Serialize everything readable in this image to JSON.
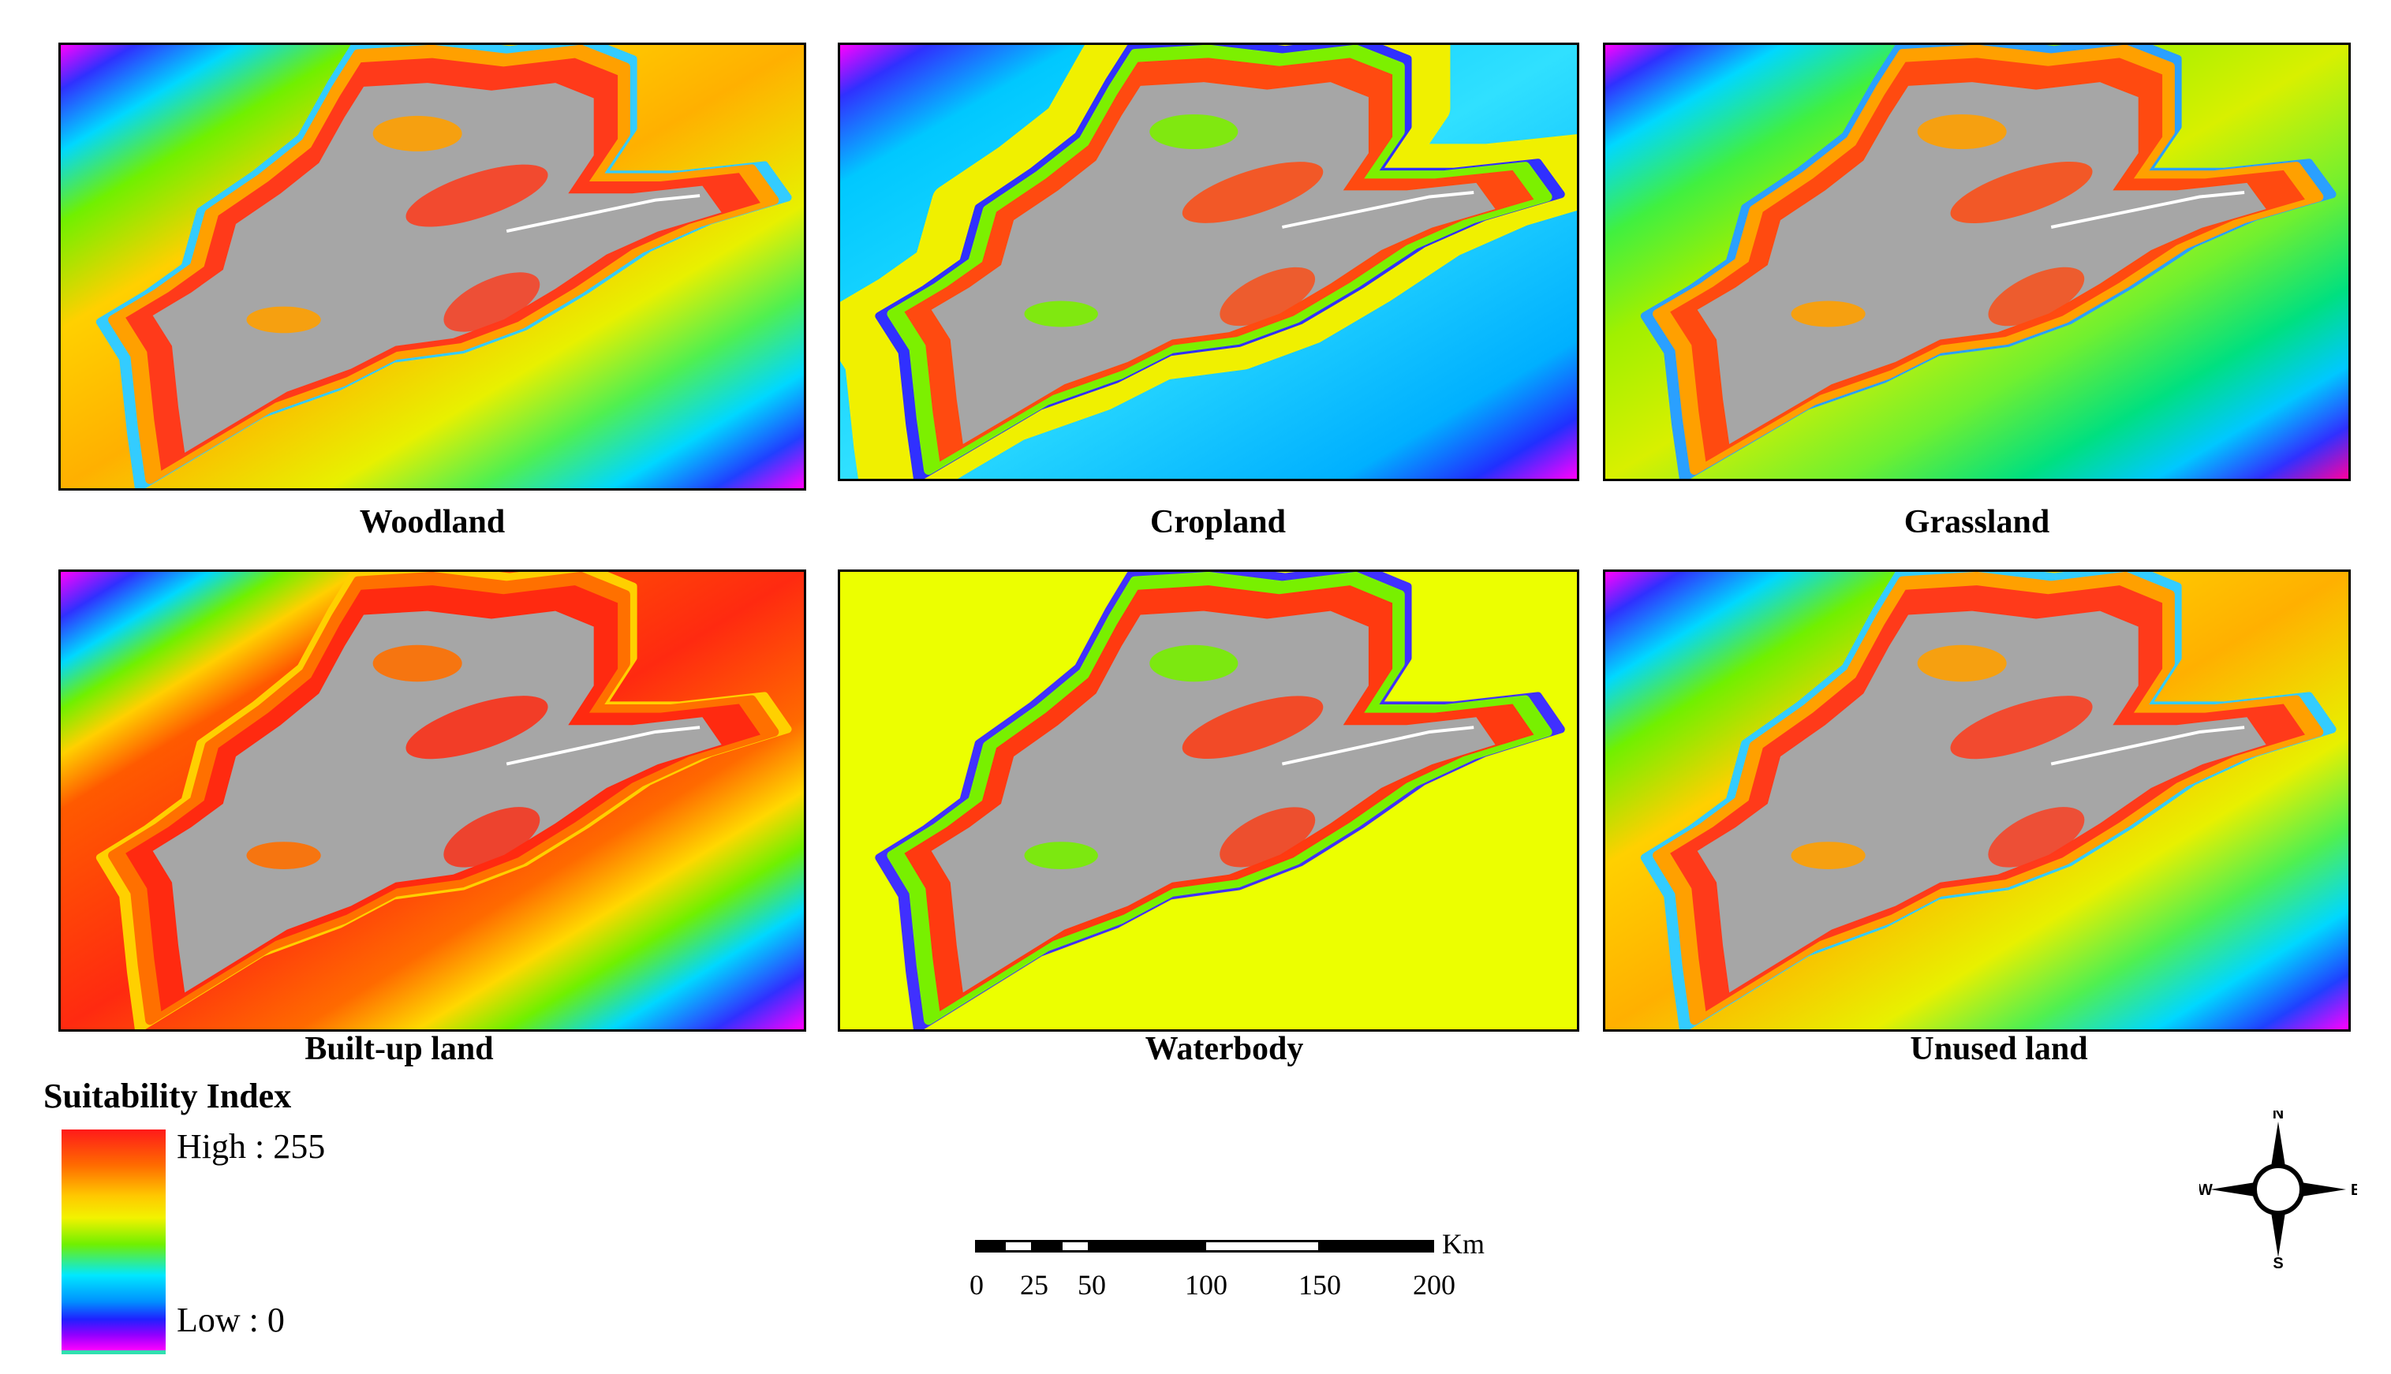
{
  "panels": [
    {
      "key": "woodland",
      "caption": "Woodland",
      "bg_angle": 28,
      "land_hi": "#ff3a1a",
      "land_mid": "#ffa000",
      "land_lo": "#33ccff"
    },
    {
      "key": "cropland",
      "caption": "Cropland",
      "bg_angle": 28,
      "land_hi": "#ff4a10",
      "land_mid": "#7cf000",
      "land_lo": "#3030ff"
    },
    {
      "key": "grassland",
      "caption": "Grassland",
      "bg_angle": 28,
      "land_hi": "#ff4a10",
      "land_mid": "#ffa000",
      "land_lo": "#2aa0ff"
    },
    {
      "key": "builtup",
      "caption": "Built-up land",
      "bg_angle": 28,
      "land_hi": "#ff2a10",
      "land_mid": "#ff7000",
      "land_lo": "#ffd000"
    },
    {
      "key": "waterbody",
      "caption": "Waterbody",
      "bg_angle": 0,
      "land_hi": "#ff3a10",
      "land_mid": "#78f000",
      "land_lo": "#4030ff"
    },
    {
      "key": "unused",
      "caption": "Unused land",
      "bg_angle": 28,
      "land_hi": "#ff3a1a",
      "land_mid": "#ffa000",
      "land_lo": "#33ccff"
    }
  ],
  "legend": {
    "title": "Suitability Index",
    "high_label": "High : 255",
    "low_label": "Low : 0"
  },
  "scale": {
    "unit": "Km",
    "ticks": [
      "0",
      "25",
      "50",
      "100",
      "150",
      "200"
    ]
  },
  "compass": {
    "n": "N",
    "s": "S",
    "e": "E",
    "w": "W"
  }
}
